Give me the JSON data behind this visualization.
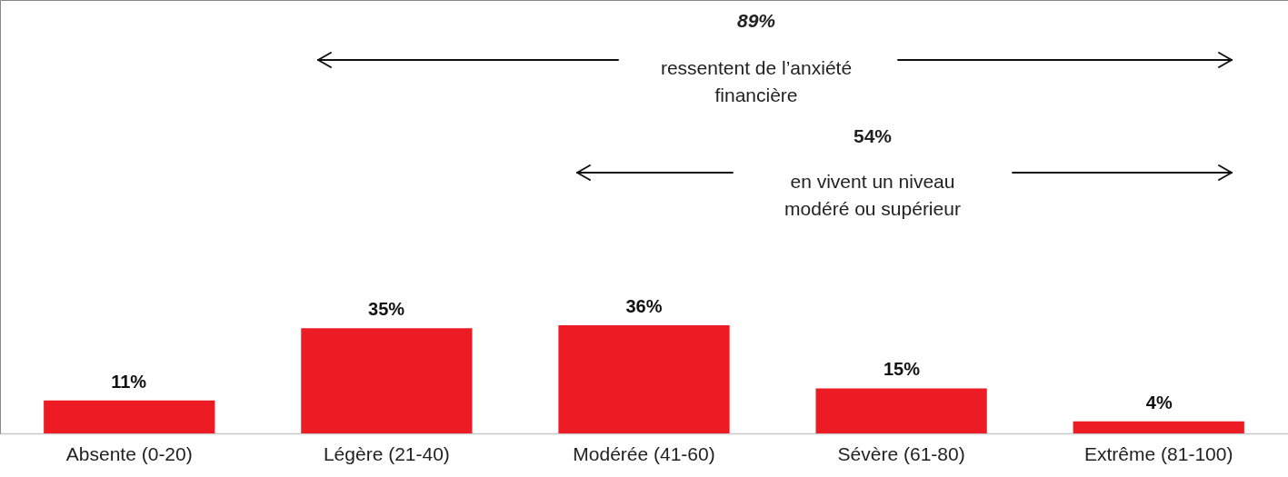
{
  "chart_data": {
    "type": "bar",
    "categories": [
      "Absente (0-20)",
      "Légère (21-40)",
      "Modérée (41-60)",
      "Sévère (61-80)",
      "Extrême (81-100)"
    ],
    "values": [
      11,
      35,
      36,
      15,
      4
    ],
    "color": "#ed1c24",
    "value_labels": [
      "11%",
      "35%",
      "36%",
      "15%",
      "4%"
    ],
    "annotations": [
      "89%",
      "ressentent de l’anxiété\nfinancière",
      "54%",
      "en vivent un niveau\nmodéré ou supérieur"
    ],
    "grid": false
  }
}
